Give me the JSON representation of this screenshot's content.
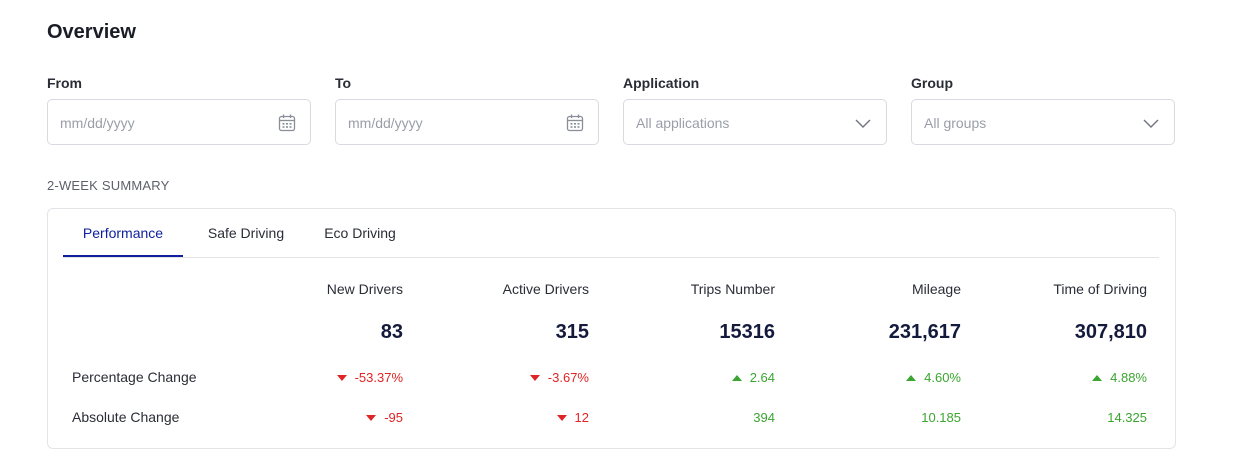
{
  "page": {
    "title": "Overview"
  },
  "filters": {
    "from": {
      "label": "From",
      "placeholder": "mm/dd/yyyy",
      "icon": "calendar-icon"
    },
    "to": {
      "label": "To",
      "placeholder": "mm/dd/yyyy",
      "icon": "calendar-icon"
    },
    "application": {
      "label": "Application",
      "value": "All applications",
      "icon": "chevron-down-icon"
    },
    "group": {
      "label": "Group",
      "value": "All groups",
      "icon": "chevron-down-icon"
    }
  },
  "summary": {
    "section_label": "2-WEEK SUMMARY",
    "tabs": [
      {
        "label": "Performance",
        "active": true
      },
      {
        "label": "Safe Driving",
        "active": false
      },
      {
        "label": "Eco Driving",
        "active": false
      }
    ],
    "columns": [
      {
        "header": "New Drivers",
        "value": "83",
        "pct": "-53.37%",
        "pct_dir": "down",
        "abs": "-95",
        "abs_dir": "down"
      },
      {
        "header": "Active Drivers",
        "value": "315",
        "pct": "-3.67%",
        "pct_dir": "down",
        "abs": "12",
        "abs_dir": "down"
      },
      {
        "header": "Trips Number",
        "value": "15316",
        "pct": "2.64",
        "pct_dir": "up",
        "abs": "394",
        "abs_dir": "none"
      },
      {
        "header": "Mileage",
        "value": "231,617",
        "pct": "4.60%",
        "pct_dir": "up",
        "abs": "10.185",
        "abs_dir": "none"
      },
      {
        "header": "Time of Driving",
        "value": "307,810",
        "pct": "4.88%",
        "pct_dir": "up",
        "abs": "14.325",
        "abs_dir": "none"
      }
    ],
    "row_labels": {
      "percentage": "Percentage Change",
      "absolute": "Absolute Change"
    }
  },
  "colors": {
    "accent": "#0d1f9c",
    "negative": "#e02424",
    "positive": "#3aa52f"
  }
}
